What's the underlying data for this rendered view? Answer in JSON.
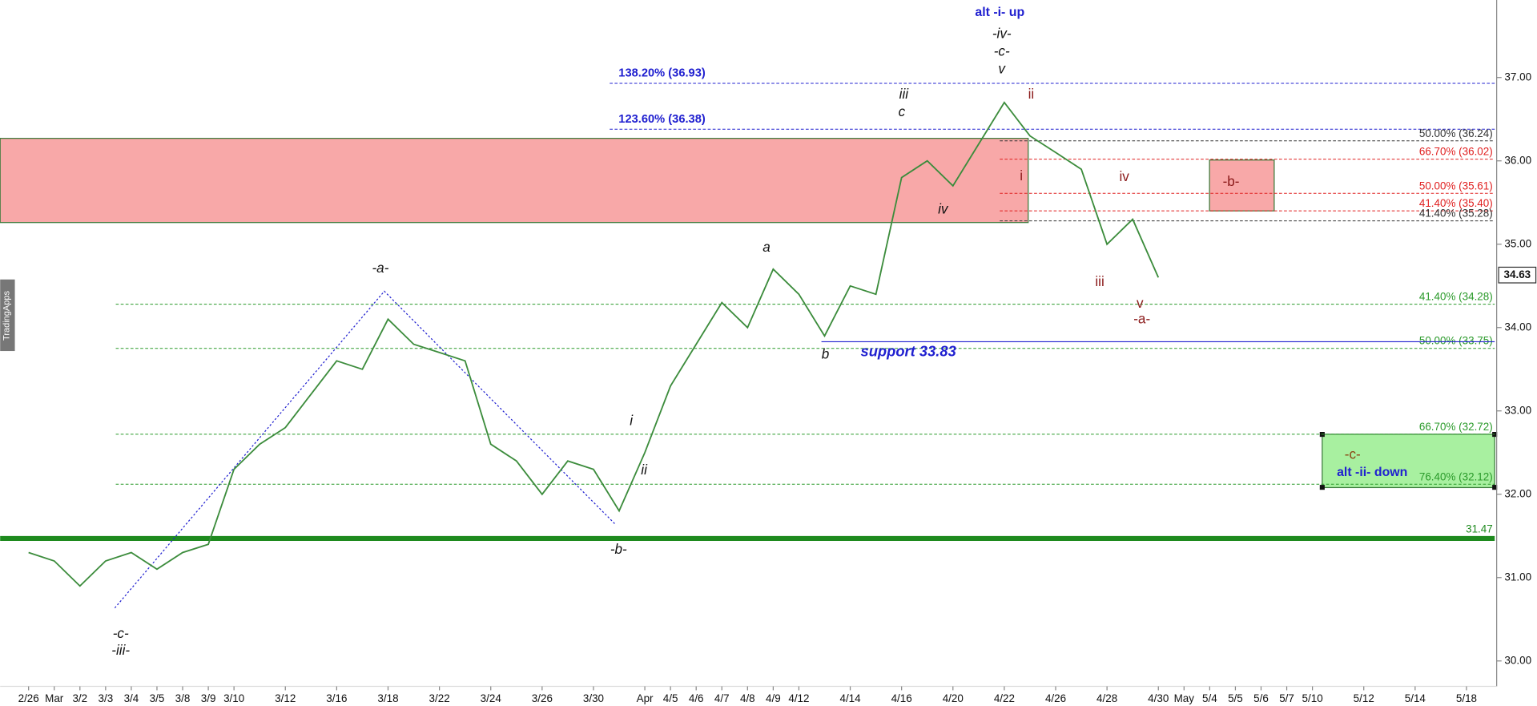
{
  "chart_data": {
    "type": "line",
    "line_color": "#3c8c3c",
    "categories": [
      "2/26",
      "Mar",
      "3/2",
      "3/3",
      "3/4",
      "3/5",
      "3/8",
      "3/9",
      "3/10",
      null,
      "3/12",
      null,
      "3/16",
      null,
      "3/18",
      null,
      "3/22",
      null,
      "3/24",
      null,
      "3/26",
      null,
      "3/30",
      null,
      "Apr",
      "4/5",
      "4/6",
      "4/7",
      "4/8",
      "4/9",
      "4/12",
      null,
      "4/14",
      null,
      "4/16",
      null,
      "4/20",
      null,
      "4/22",
      null,
      "4/26",
      null,
      "4/28",
      null,
      "4/30",
      "May",
      "5/4",
      "5/5",
      "5/6",
      "5/7",
      "5/10",
      null,
      "5/12",
      null,
      "5/14",
      null,
      "5/18"
    ],
    "values": [
      31.3,
      31.2,
      30.9,
      31.2,
      31.3,
      31.1,
      31.3,
      31.4,
      32.3,
      32.6,
      32.8,
      33.2,
      33.6,
      33.5,
      34.1,
      33.8,
      33.7,
      33.6,
      32.6,
      32.4,
      32.0,
      32.4,
      32.3,
      31.8,
      32.5,
      33.3,
      33.8,
      34.3,
      34.0,
      34.7,
      34.4,
      33.9,
      34.5,
      34.4,
      35.8,
      36.0,
      35.7,
      36.2,
      36.7,
      36.3,
      36.1,
      35.9,
      35.0,
      35.3,
      34.6,
      null,
      null,
      null,
      null,
      null,
      null,
      null,
      null,
      null,
      null,
      null,
      null
    ],
    "ylim": [
      29.78,
      37.93
    ],
    "yticks": [
      {
        "value": 30,
        "label": "30.00"
      },
      {
        "value": 31,
        "label": "31.00"
      },
      {
        "value": 32,
        "label": "32.00"
      },
      {
        "value": 33,
        "label": "33.00"
      },
      {
        "value": 34,
        "label": "34.00"
      },
      {
        "value": 35,
        "label": "35.00"
      },
      {
        "value": 36,
        "label": "36.00"
      },
      {
        "value": 37,
        "label": "37.00"
      }
    ],
    "last_price": {
      "value": 34.63,
      "label": "34.63"
    },
    "levels": [
      {
        "label": "138.20% (36.93)",
        "value": 36.93,
        "color": "#2020d0",
        "style": "dashed"
      },
      {
        "label": "123.60% (36.38)",
        "value": 36.38,
        "color": "#2020d0",
        "style": "dashed"
      },
      {
        "label": "50.00% (36.24)",
        "value": 36.24,
        "color": "#333333",
        "style": "dashed"
      },
      {
        "label": "66.70% (36.02)",
        "value": 36.02,
        "color": "#e02020",
        "style": "dashed"
      },
      {
        "label": "50.00% (35.61)",
        "value": 35.61,
        "color": "#e02020",
        "style": "dashed"
      },
      {
        "label": "41.40% (35.40)",
        "value": 35.4,
        "color": "#e02020",
        "style": "dashed"
      },
      {
        "label": "41.40% (35.28)",
        "value": 35.28,
        "color": "#333333",
        "style": "dashed"
      },
      {
        "label": "41.40% (34.28)",
        "value": 34.28,
        "color": "#2a9a2a",
        "style": "dashed"
      },
      {
        "label": "50.00% (33.75)",
        "value": 33.75,
        "color": "#2a9a2a",
        "style": "dashed"
      },
      {
        "label": "66.70% (32.72)",
        "value": 32.72,
        "color": "#2a9a2a",
        "style": "dashed"
      },
      {
        "label": "76.40% (32.12)",
        "value": 32.12,
        "color": "#2a9a2a",
        "style": "dashed"
      },
      {
        "label": "31.47",
        "value": 31.47,
        "color": "#1e8a1e",
        "style": "thick"
      },
      {
        "label": "support 33.83",
        "value": 33.83,
        "color": "#2020d0",
        "style": "solid"
      }
    ],
    "zones": [
      {
        "top": 36.27,
        "bottom": 35.26,
        "color": "#f8a8a8"
      },
      {
        "top": 36.01,
        "bottom": 35.4,
        "color": "#f8a8a8"
      },
      {
        "top": 32.72,
        "bottom": 32.08,
        "color": "#a8f0a0"
      }
    ],
    "annotations": [
      {
        "text": "alt -i- up",
        "color": "#2020d0"
      },
      {
        "text": "-iv-",
        "color": "#111111"
      },
      {
        "text": "-c-",
        "color": "#111111"
      },
      {
        "text": "v",
        "color": "#111111"
      },
      {
        "text": "iii",
        "color": "#111111"
      },
      {
        "text": "c",
        "color": "#111111"
      },
      {
        "text": "ii",
        "color": "#8b1a1a"
      },
      {
        "text": "i",
        "color": "#8b1a1a"
      },
      {
        "text": "iv",
        "color": "#111111"
      },
      {
        "text": "iv",
        "color": "#8b1a1a"
      },
      {
        "text": "iii",
        "color": "#8b1a1a"
      },
      {
        "text": "v",
        "color": "#8b1a1a"
      },
      {
        "text": "-a-",
        "color": "#8b1a1a"
      },
      {
        "text": "-b-",
        "color": "#8b1a1a"
      },
      {
        "text": "-a-",
        "color": "#111111"
      },
      {
        "text": "a",
        "color": "#111111"
      },
      {
        "text": "b",
        "color": "#111111"
      },
      {
        "text": "i",
        "color": "#111111"
      },
      {
        "text": "ii",
        "color": "#111111"
      },
      {
        "text": "-b-",
        "color": "#111111"
      },
      {
        "text": "-c-",
        "color": "#111111"
      },
      {
        "text": "-iii-",
        "color": "#111111"
      },
      {
        "text": "-c-",
        "color": "#8b4513"
      },
      {
        "text": "alt -ii- down",
        "color": "#2020d0"
      }
    ],
    "watermark": "TradingApps"
  }
}
